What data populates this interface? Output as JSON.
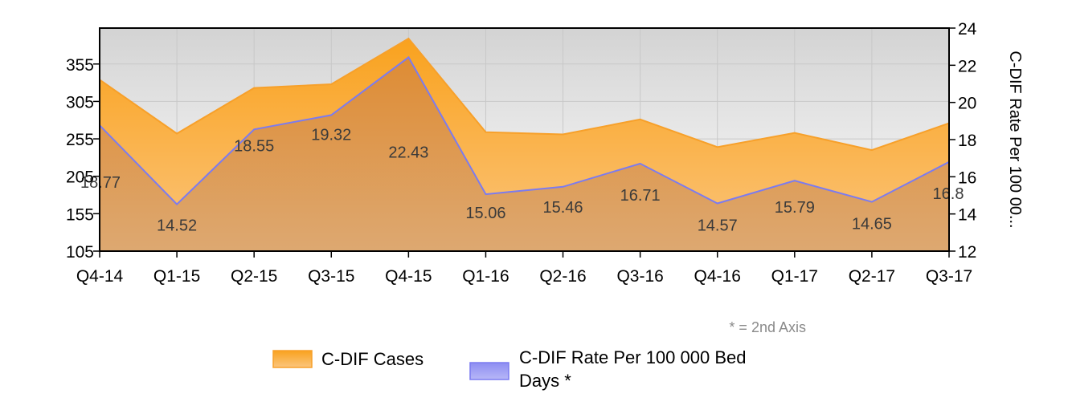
{
  "chart_data": {
    "type": "area",
    "categories": [
      "Q4-14",
      "Q1-15",
      "Q2-15",
      "Q3-15",
      "Q4-15",
      "Q1-16",
      "Q2-16",
      "Q3-16",
      "Q4-16",
      "Q1-17",
      "Q2-17",
      "Q3-17"
    ],
    "series": [
      {
        "name": "C-DIF Cases",
        "axis": "left",
        "color": "#F7A02A",
        "values": [
          334,
          262,
          323,
          328,
          389,
          264,
          261,
          281,
          244,
          263,
          240,
          276
        ]
      },
      {
        "name": "C-DIF Rate Per 100 000 Bed Days *",
        "axis": "right",
        "color": "#7B7BF0",
        "values": [
          18.77,
          14.52,
          18.55,
          19.32,
          22.43,
          15.06,
          15.46,
          16.71,
          14.57,
          15.79,
          14.65,
          16.8
        ],
        "data_labels": [
          "18.77",
          "14.52",
          "18.55",
          "19.32",
          "22.43",
          "15.06",
          "15.46",
          "16.71",
          "14.57",
          "15.79",
          "14.65",
          "16.8"
        ]
      }
    ],
    "y_left": {
      "ticks": [
        105,
        155,
        205,
        255,
        305,
        355
      ],
      "tick_labels": [
        "105",
        "155",
        "205",
        "255",
        "305",
        "355"
      ],
      "range": [
        105,
        403
      ]
    },
    "y_right": {
      "ticks": [
        12,
        14,
        16,
        18,
        20,
        22,
        24
      ],
      "tick_labels": [
        "12",
        "14",
        "16",
        "18",
        "20",
        "22",
        "24"
      ],
      "range": [
        12,
        24
      ],
      "title": "C-DIF Rate Per 100 00..."
    },
    "xlabel": "",
    "ylabel": "",
    "grid": true,
    "legend_position": "bottom",
    "note": "* = 2nd Axis",
    "legend": {
      "items": [
        {
          "label": "C-DIF Cases",
          "color": "#F7A02A"
        },
        {
          "label_line1": "C-DIF Rate Per 100 000 Bed",
          "label_line2": "Days *",
          "color": "#7B7BF0"
        }
      ]
    }
  }
}
